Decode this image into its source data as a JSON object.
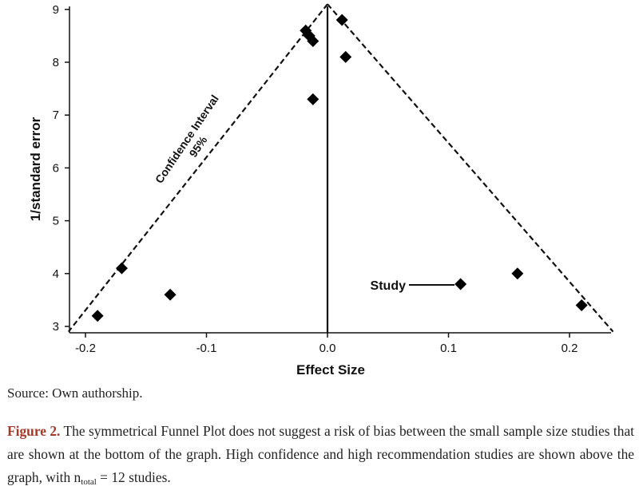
{
  "chart_data": {
    "type": "scatter",
    "title": "",
    "xlabel": "Effect Size",
    "ylabel": "1/standard error",
    "xlim": [
      -0.21,
      0.24
    ],
    "ylim": [
      2.9,
      9.1
    ],
    "xticks": [
      -0.2,
      -0.1,
      0.0,
      0.1,
      0.2
    ],
    "xtick_labels": [
      "-0.2",
      "-0.1",
      "0.0",
      "0.1",
      "0.2"
    ],
    "yticks": [
      3,
      4,
      5,
      6,
      7,
      8,
      9
    ],
    "ytick_labels": [
      "3",
      "4",
      "5",
      "6",
      "7",
      "8",
      "9"
    ],
    "reference_line_x": 0.0,
    "funnel_apex": {
      "x": 0.0,
      "y": 9.1
    },
    "funnel_base": {
      "left_x": -0.214,
      "right_x": 0.236,
      "y": 2.9
    },
    "points": [
      {
        "x": -0.19,
        "y": 3.2
      },
      {
        "x": -0.17,
        "y": 4.1
      },
      {
        "x": -0.13,
        "y": 3.6
      },
      {
        "x": -0.018,
        "y": 8.6
      },
      {
        "x": -0.015,
        "y": 8.5
      },
      {
        "x": -0.012,
        "y": 8.4
      },
      {
        "x": -0.012,
        "y": 7.3
      },
      {
        "x": 0.012,
        "y": 8.8
      },
      {
        "x": 0.015,
        "y": 8.1
      },
      {
        "x": 0.11,
        "y": 3.8
      },
      {
        "x": 0.157,
        "y": 4.0
      },
      {
        "x": 0.21,
        "y": 3.4
      }
    ],
    "annotations": {
      "ci_line1": "Confidence Interval",
      "ci_line2": "95%",
      "study_label": "Study"
    }
  },
  "source_text": "Source: Own authorship.",
  "caption": {
    "label": "Figure 2.",
    "text_before": " The symmetrical Funnel Plot does not suggest a risk of bias between the small sample size studies that are shown at the bottom of the graph. High confidence and high recommendation studies are shown above the graph, with n",
    "subscript": "total",
    "text_after": " = 12 studies."
  }
}
